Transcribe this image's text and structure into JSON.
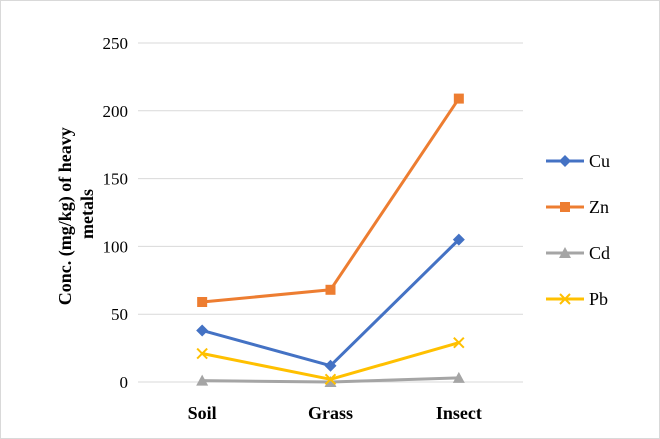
{
  "chart_data": {
    "type": "line",
    "title": "",
    "xlabel": "",
    "ylabel": "Conc. (mg/kg) of heavy metals",
    "ylabel_lines": [
      "Conc. (mg/kg) of heavy",
      "metals"
    ],
    "categories": [
      "Soil",
      "Grass",
      "Insect"
    ],
    "ylim": [
      0,
      250
    ],
    "yticks": [
      0,
      50,
      100,
      150,
      200,
      250
    ],
    "grid": true,
    "legend_position": "right",
    "series": [
      {
        "name": "Cu",
        "values": [
          38,
          12,
          105
        ],
        "color": "#4472c4",
        "marker": "diamond"
      },
      {
        "name": "Zn",
        "values": [
          59,
          68,
          209
        ],
        "color": "#ed7d31",
        "marker": "square"
      },
      {
        "name": "Cd",
        "values": [
          1,
          0,
          3
        ],
        "color": "#a5a5a5",
        "marker": "triangle"
      },
      {
        "name": "Pb",
        "values": [
          21,
          2,
          29
        ],
        "color": "#ffc000",
        "marker": "x"
      }
    ]
  }
}
